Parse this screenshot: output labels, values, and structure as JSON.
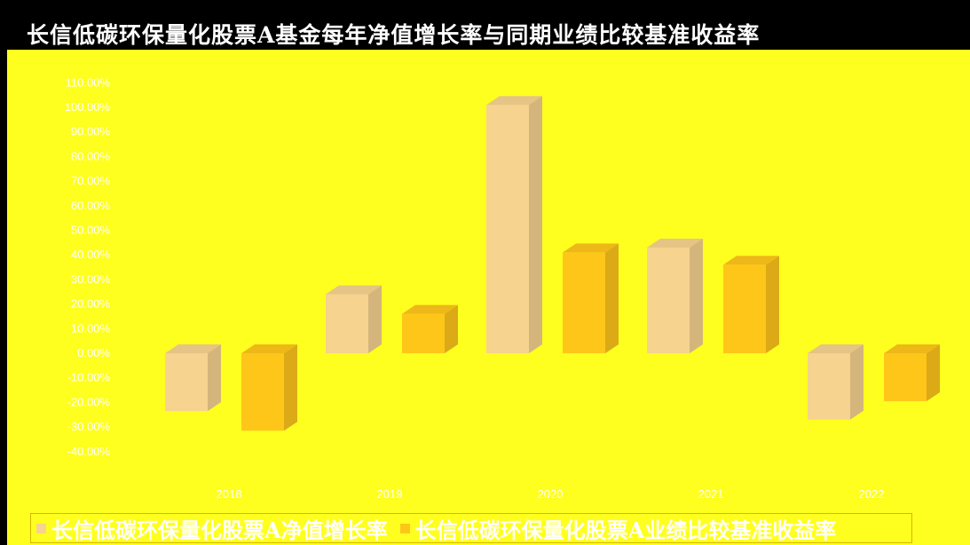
{
  "chart_data": {
    "type": "bar",
    "title": "长信低碳环保量化股票A基金每年净值增长率与同期业绩比较基准收益率",
    "categories": [
      "2018",
      "2019",
      "2020",
      "2021",
      "2022"
    ],
    "series": [
      {
        "name": "长信低碳环保量化股票A净值增长率",
        "color": "#f6d38f",
        "values": [
          -23.5,
          24.0,
          101.0,
          43.0,
          -27.0
        ]
      },
      {
        "name": "长信低碳环保量化股票A业绩比较基准收益率",
        "color": "#ffc61a",
        "values": [
          -31.5,
          16.0,
          41.0,
          36.0,
          -19.5
        ]
      }
    ],
    "yticks": [
      "110.00%",
      "100.00%",
      "90.00%",
      "80.00%",
      "70.00%",
      "60.00%",
      "50.00%",
      "40.00%",
      "30.00%",
      "20.00%",
      "10.00%",
      "0.00%",
      "-10.00%",
      "-20.00%",
      "-30.00%",
      "-40.00%"
    ],
    "ylim": [
      -40,
      110
    ],
    "grid": false,
    "legend_position": "bottom"
  }
}
